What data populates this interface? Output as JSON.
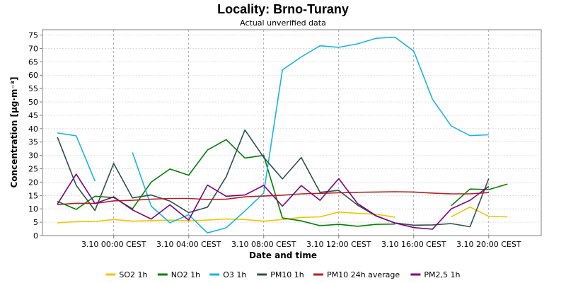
{
  "chart_data": {
    "type": "line",
    "title": "Locality: Brno-Turany",
    "subtitle": "Actual unverified data",
    "xlabel": "Date and time",
    "ylabel": "Concentration [µg·m⁻³]",
    "ylim": [
      0,
      77
    ],
    "yticks": [
      0,
      5,
      10,
      15,
      20,
      25,
      30,
      35,
      40,
      45,
      50,
      55,
      60,
      65,
      70,
      75
    ],
    "x_hours": [
      -3,
      -2,
      -1,
      0,
      1,
      2,
      3,
      4,
      5,
      6,
      7,
      8,
      9,
      10,
      11,
      12,
      13,
      14,
      15,
      16,
      17,
      18,
      19,
      20,
      21,
      22
    ],
    "xlim_hours": [
      -3.8,
      22.8
    ],
    "x_tick_hours": [
      0,
      4,
      8,
      12,
      16,
      20
    ],
    "x_tick_labels": [
      "3.10 00:00 CEST",
      "3.10 04:00 CEST",
      "3.10 08:00 CEST",
      "3.10 12:00 CEST",
      "3.10 16:00 CEST",
      "3.10 20:00 CEST"
    ],
    "grid": true,
    "legend_position": "bottom",
    "series": [
      {
        "name": "SO2 1h",
        "color": "#f5c400",
        "values": [
          4.8,
          5.2,
          5.3,
          6.0,
          5.4,
          5.6,
          5.8,
          5.5,
          5.8,
          6.2,
          6.0,
          5.4,
          6.0,
          6.8,
          7.0,
          8.8,
          8.3,
          8.0,
          6.9,
          null,
          null,
          7.0,
          10.7,
          7.2,
          7.0,
          null
        ]
      },
      {
        "name": "NO2 1h",
        "color": "#008000",
        "values": [
          12.8,
          9.8,
          14.7,
          14.2,
          10.0,
          20.0,
          24.9,
          22.6,
          32.0,
          35.9,
          29.0,
          30.0,
          6.6,
          5.5,
          3.7,
          4.2,
          3.5,
          4.2,
          4.3,
          null,
          null,
          11.2,
          17.4,
          17.2,
          19.3,
          null
        ]
      },
      {
        "name": "O3 1h",
        "color": "#1ab3e6",
        "values": [
          38.4,
          37.3,
          20.4,
          null,
          31.1,
          11.0,
          4.8,
          7.8,
          1.0,
          2.9,
          9.2,
          15.9,
          62.0,
          66.8,
          71.0,
          70.4,
          71.7,
          73.8,
          74.2,
          69.0,
          51.0,
          41.0,
          37.4,
          37.7,
          null,
          null
        ]
      },
      {
        "name": "PM10 1h",
        "color": "#2f4f4f",
        "values": [
          36.8,
          18.8,
          9.4,
          27.0,
          14.1,
          15.2,
          12.9,
          8.6,
          10.6,
          22.0,
          39.5,
          29.3,
          21.2,
          29.2,
          16.2,
          16.9,
          11.4,
          7.3,
          4.7,
          3.9,
          4.0,
          4.5,
          3.3,
          21.3,
          null,
          null
        ]
      },
      {
        "name": "PM10 24h average",
        "color": "#b22222",
        "values": [
          11.6,
          12.1,
          12.0,
          13.0,
          13.2,
          13.6,
          13.9,
          13.9,
          13.5,
          13.6,
          14.5,
          14.8,
          15.1,
          15.6,
          15.8,
          16.0,
          16.2,
          16.3,
          16.4,
          16.3,
          15.9,
          15.6,
          15.6,
          16.1,
          null,
          null
        ]
      },
      {
        "name": "PM2,5 1h",
        "color": "#800080",
        "values": [
          11.8,
          23.0,
          12.0,
          14.5,
          9.6,
          6.2,
          11.5,
          5.8,
          18.9,
          14.7,
          15.2,
          18.8,
          11.0,
          18.7,
          13.2,
          21.3,
          12.0,
          7.4,
          4.7,
          3.0,
          2.4,
          10.0,
          13.2,
          18.4,
          null,
          null
        ]
      }
    ]
  }
}
